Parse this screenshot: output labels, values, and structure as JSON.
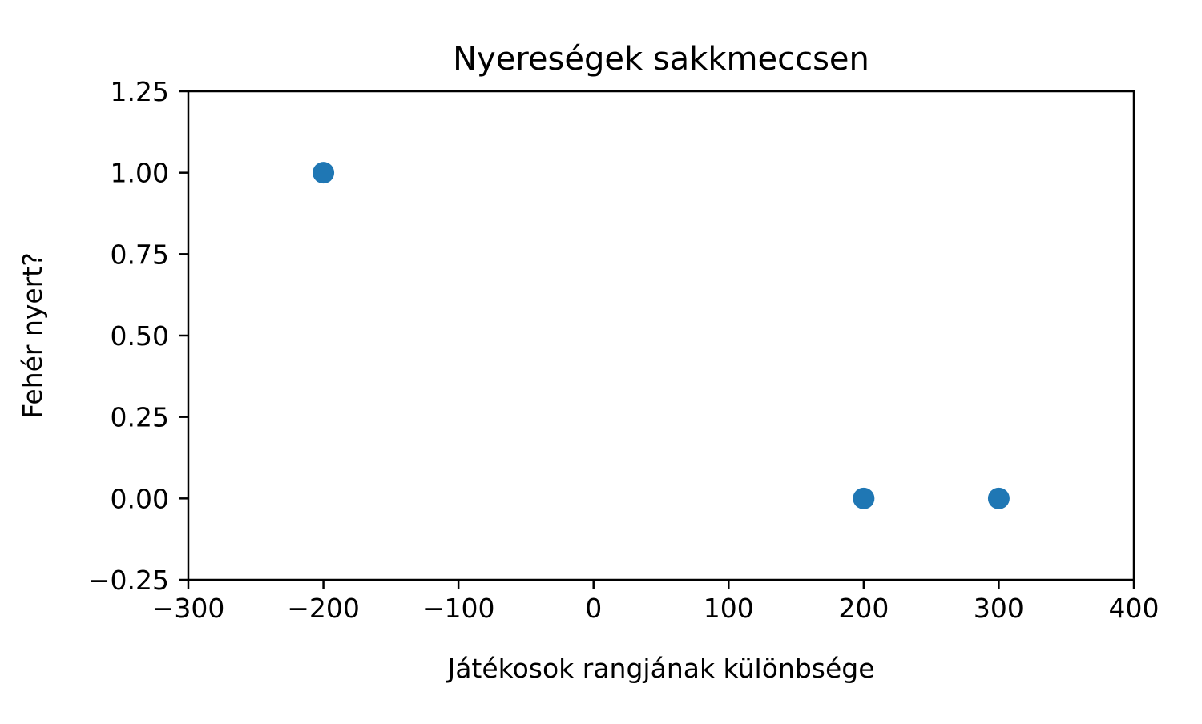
{
  "chart_data": {
    "type": "scatter",
    "title": "Nyereségek sakkmeccsen",
    "xlabel": "Játékosok rangjának különbsége",
    "ylabel": "Fehér nyert?",
    "xlim": [
      -300,
      400
    ],
    "ylim": [
      -0.25,
      1.25
    ],
    "x_ticks": [
      -300,
      -200,
      -100,
      0,
      100,
      200,
      300,
      400
    ],
    "x_tick_labels": [
      "−300",
      "−200",
      "−100",
      "0",
      "100",
      "200",
      "300",
      "400"
    ],
    "y_ticks": [
      -0.25,
      0,
      0.25,
      0.5,
      0.75,
      1,
      1.25
    ],
    "y_tick_labels": [
      "−0.25",
      "0.00",
      "0.25",
      "0.50",
      "0.75",
      "1.00",
      "1.25"
    ],
    "grid": false,
    "legend": "none",
    "series": [
      {
        "color": "#1f77b4",
        "points": [
          {
            "x": -200,
            "y": 1
          },
          {
            "x": 200,
            "y": 0
          },
          {
            "x": 300,
            "y": 0
          }
        ]
      }
    ]
  }
}
